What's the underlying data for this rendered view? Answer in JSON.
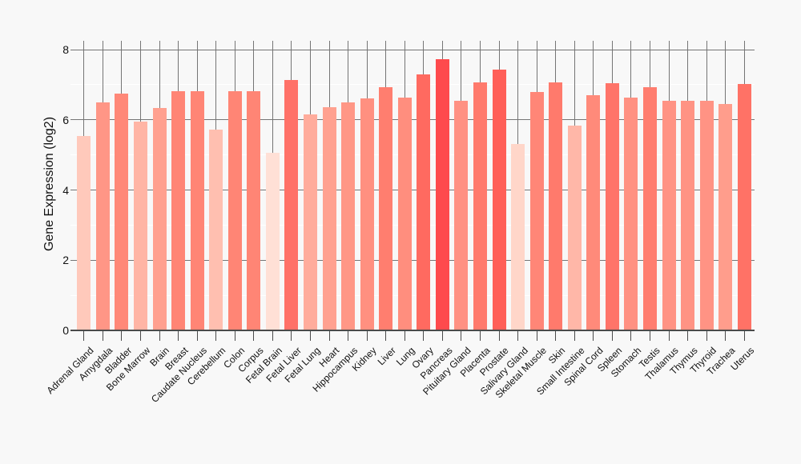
{
  "page": {
    "background": "#f8f8f8"
  },
  "chart_data": {
    "type": "bar",
    "title": "",
    "ylabel": "Gene Expression (log2)",
    "xlabel": "",
    "ylim": [
      0,
      8
    ],
    "y_ticks": [
      0,
      2,
      4,
      6,
      8
    ],
    "y_minor_gridlines": [
      1,
      3,
      5,
      7
    ],
    "grid": "on",
    "legend": "none",
    "x_tick_rotation_deg": 45,
    "categories": [
      "Adrenal Gland",
      "Amygdala",
      "Bladder",
      "Bone Marrow",
      "Brain",
      "Breast",
      "Caudate Nucleus",
      "Cerebellum",
      "Colon",
      "Corpus",
      "Fetal Brain",
      "Fetal Liver",
      "Fetal Lung",
      "Heart",
      "Hippocampus",
      "Kidney",
      "Liver",
      "Lung",
      "Ovary",
      "Pancreas",
      "Pituitary Gland",
      "Placenta",
      "Prostate",
      "Salivary Gland",
      "Skeletal Muscle",
      "Skin",
      "Small Intestine",
      "Spinal Cord",
      "Spleen",
      "Stomach",
      "Testis",
      "Thalamus",
      "Thymus",
      "Thyroid",
      "Trachea",
      "Uterus"
    ],
    "values": [
      5.53,
      6.5,
      6.74,
      5.94,
      6.33,
      6.82,
      6.82,
      5.71,
      6.82,
      6.82,
      5.07,
      7.14,
      6.15,
      6.35,
      6.5,
      6.6,
      6.93,
      6.64,
      7.29,
      7.73,
      6.54,
      7.06,
      7.44,
      5.31,
      6.8,
      7.06,
      5.84,
      6.71,
      7.05,
      6.63,
      6.94,
      6.54,
      6.54,
      6.55,
      6.44,
      7.02
    ],
    "bar_colors": [
      "#ffc9bb",
      "#ff9686",
      "#ff8878",
      "#ffb5a5",
      "#ffa08f",
      "#ff8575",
      "#ff8575",
      "#ffbfb0",
      "#ff8575",
      "#ff8575",
      "#ffe0d6",
      "#ff7168",
      "#ffac9c",
      "#ffa190",
      "#ff9786",
      "#ff9080",
      "#ff7e6f",
      "#ff8e7e",
      "#ff6a60",
      "#fe4a4d",
      "#ff9183",
      "#ff7a6c",
      "#ff5f58",
      "#ffd6c9",
      "#ff8677",
      "#ff7a6c",
      "#ffb7a8",
      "#ff8a7a",
      "#ff7469",
      "#ff9182",
      "#ff7d6f",
      "#ff9384",
      "#ff9384",
      "#ff9384",
      "#ff9d8c",
      "#ff7266"
    ],
    "colors": {
      "background": "#f8f8f8",
      "grid_major": "#757575",
      "grid_minor": "#ffffff",
      "axis_line": "#4a4a4a",
      "tick_text": "#111111"
    }
  }
}
